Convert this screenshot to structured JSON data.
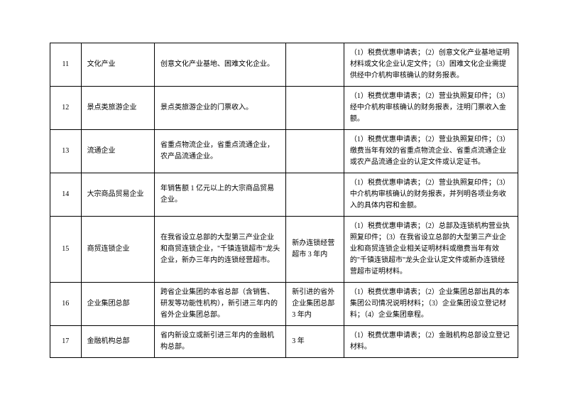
{
  "table": {
    "rows": [
      {
        "num": "11",
        "type": "文化产业",
        "desc": "创意文化产业基地、困难文化企业。",
        "period": "",
        "docs": "（1）税费优惠申请表；（2）创意文化产业基地证明材料或文化企业认定文件；（3）困难文化企业需提供经中介机构审核确认的财务报表。"
      },
      {
        "num": "12",
        "type": "景点类旅游企业",
        "desc": "景点类旅游企业的门票收入。",
        "period": "",
        "docs": "（1）税费优惠申请表；（2）营业执照复印件；（3）经中介机构审核确认的财务报表，注明门票收入金额。"
      },
      {
        "num": "13",
        "type": "流通企业",
        "desc": "省重点物流企业，省重点流通企业，农产品流通企业。",
        "period": "",
        "docs": "（1）税费优惠申请表；（2）营业执照复印件；（3）缴费当年有效的省重点物流企业、省重点流通企业或农产品流通企业的认定文件或认定证书。"
      },
      {
        "num": "14",
        "type": "大宗商品贸易企业",
        "desc": "年销售额 1 亿元以上的大宗商品贸易企业。",
        "period": "",
        "docs": "（1）税费优惠申请表；（2）营业执照复印件；（3）中介机构审核确认的财务报表，并列明各项业务收入的具体内容和金额。"
      },
      {
        "num": "15",
        "type": "商贸连锁企业",
        "desc": "在我省设立总部的大型第三产业企业和商贸连锁企业，\"千镇连锁超市\"龙头企业，新办三年内的连锁经营超市。",
        "period": "新办连锁经营超市 3 年内",
        "docs": "（1）税费优惠申请表；（2）总部及连锁机构营业执照复印件；（3）在我省设立总部的大型第三产业企业和商贸连锁企业相关证明材料或缴费当年有效的\"千镇连锁超市\"龙头企业认定文件或新办连锁经营超市证明材料。"
      },
      {
        "num": "16",
        "type": "企业集团总部",
        "desc": "跨省企业集团的本省总部（含销售、研发等功能性机构），新引进三年内的省外企业集团总部。",
        "period": "新引进的省外企业集团总部 3 年内",
        "docs": "（1）税费优惠申请表；（2）企业集团总部出具的本集团公司情况说明材料；（3）企业集团设立登记材料；（4）企业集团章程。"
      },
      {
        "num": "17",
        "type": "金融机构总部",
        "desc": "省内新设立或新引进三年内的金融机构总部。",
        "period": "3 年",
        "docs": "（1）税费优惠申请表；（2）金融机构总部设立登记材料。"
      }
    ]
  }
}
